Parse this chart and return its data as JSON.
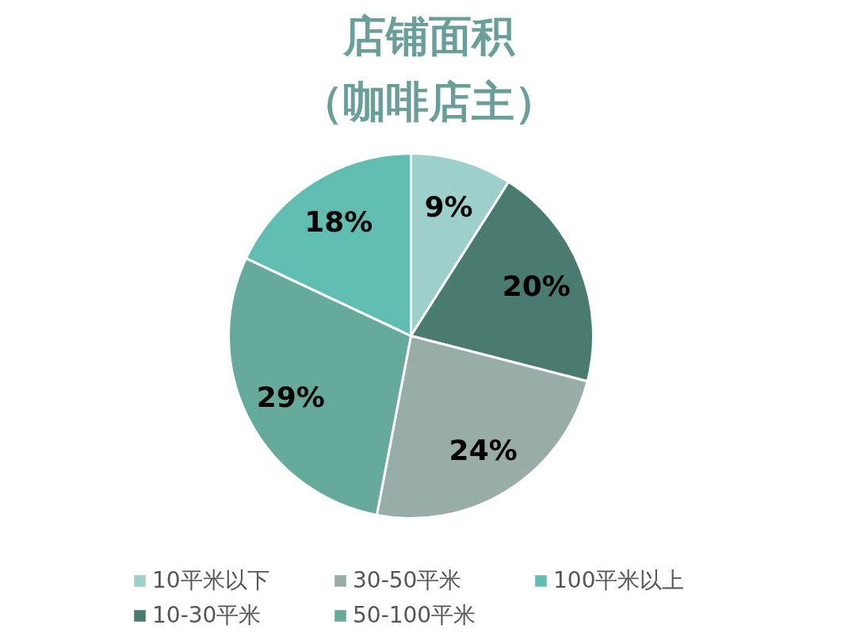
{
  "chart_data": {
    "type": "pie",
    "title": "店铺面积",
    "subtitle": "（咖啡店主）",
    "categories": [
      "10平米以下",
      "10-30平米",
      "30-50平米",
      "50-100平米",
      "100平米以上"
    ],
    "values": [
      9,
      20,
      24,
      29,
      18
    ],
    "colors": [
      "#9dd0cb",
      "#4a7b70",
      "#98aca8",
      "#66aa9c",
      "#60bdb1"
    ],
    "value_labels": [
      "9%",
      "20%",
      "24%",
      "29%",
      "18%"
    ],
    "legend": "bottom"
  }
}
